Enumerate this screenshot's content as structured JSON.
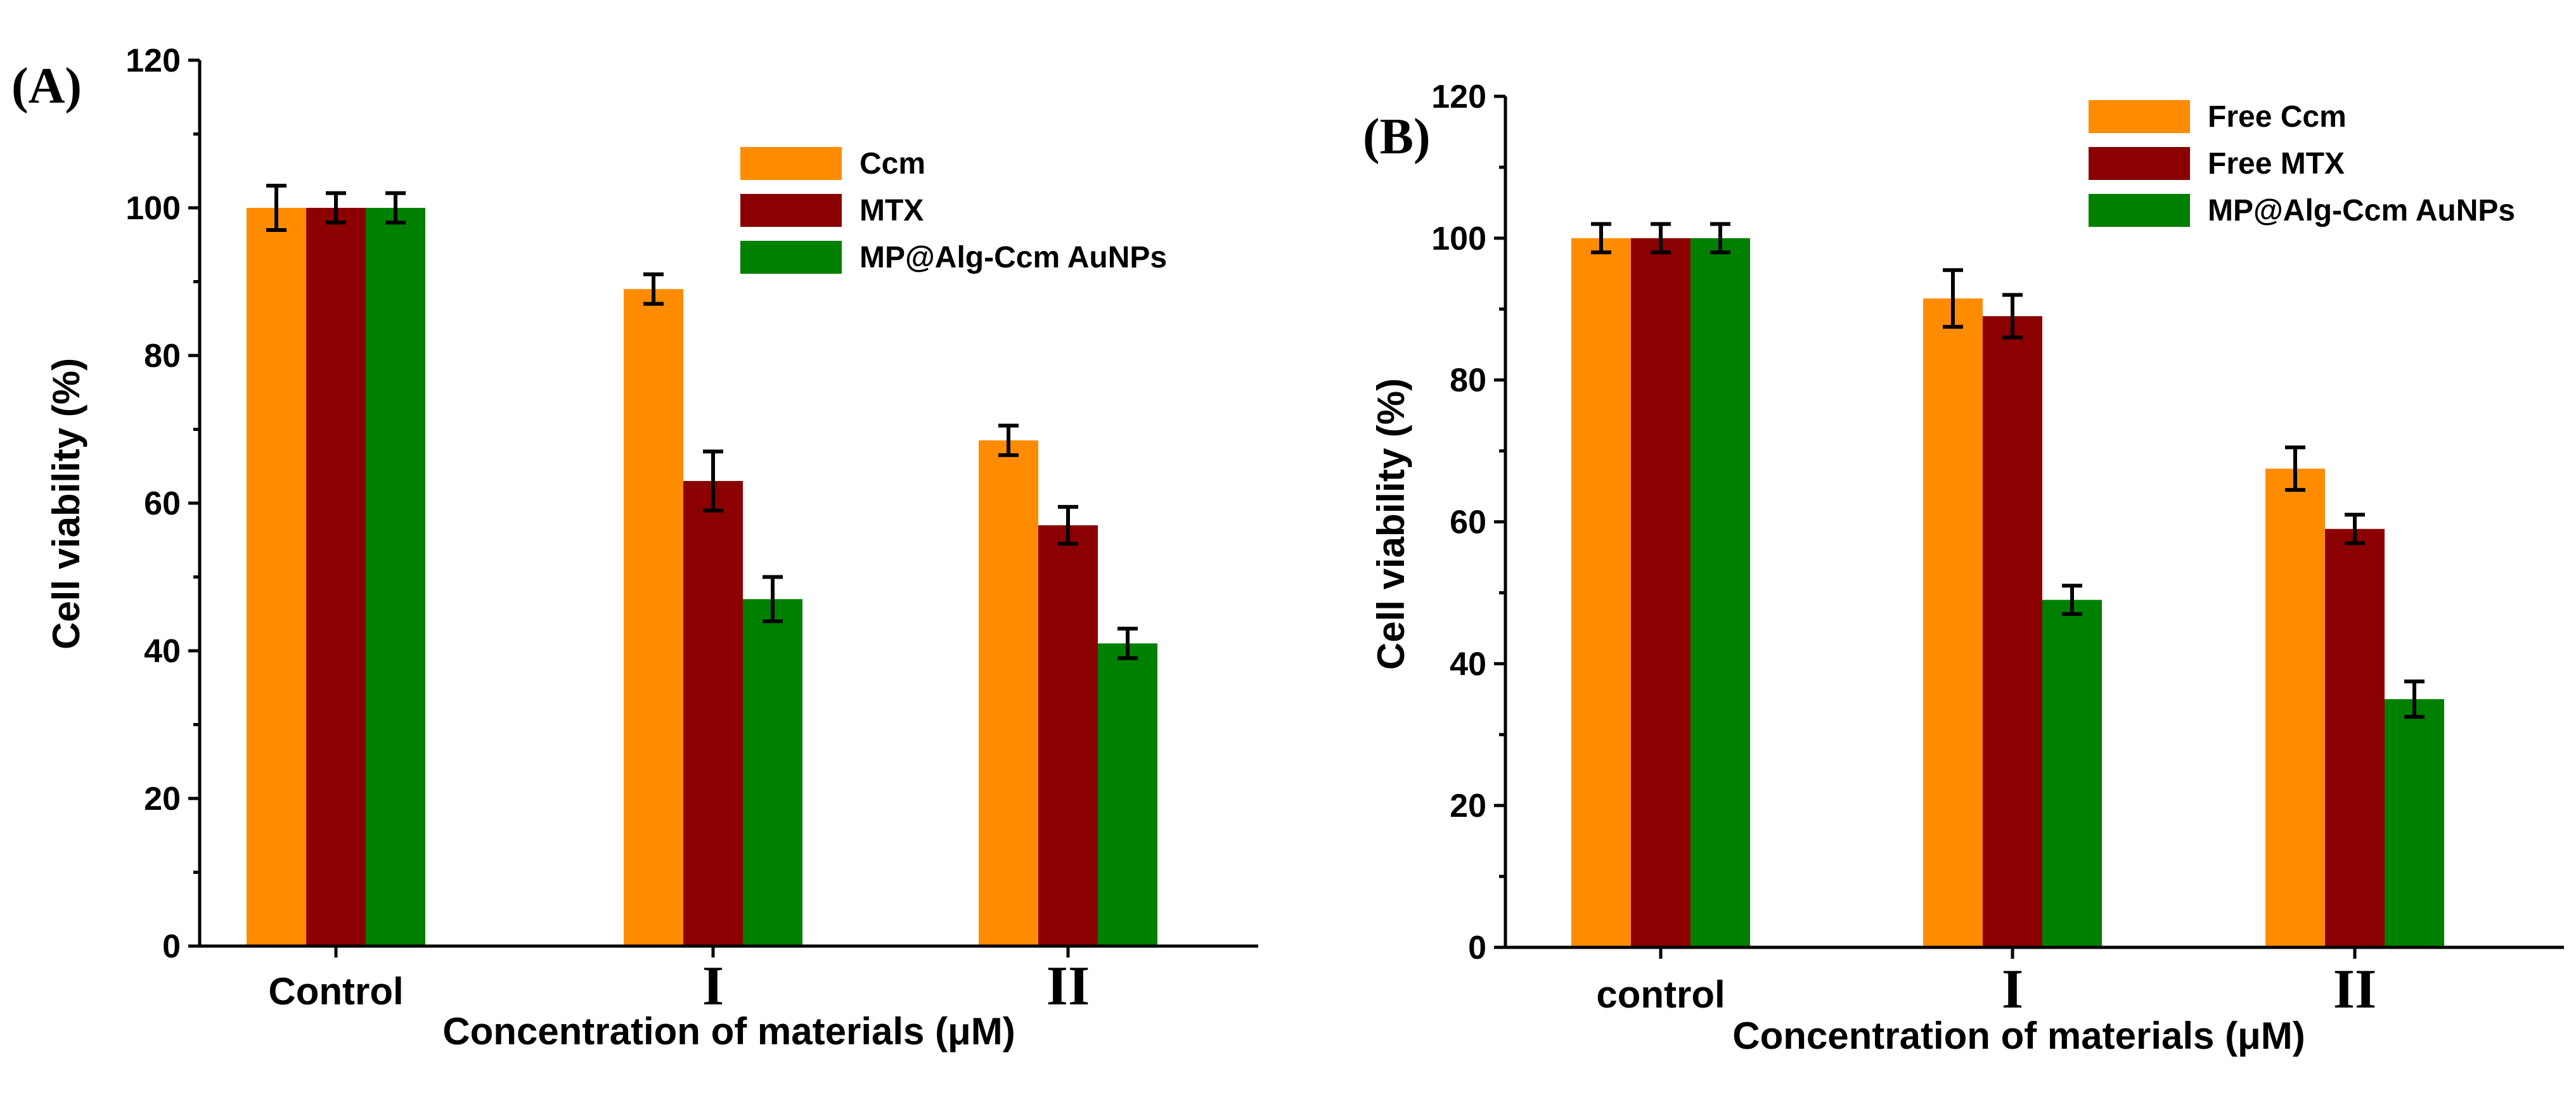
{
  "chart_data": [
    {
      "type": "bar",
      "panel_label": "(A)",
      "categories": [
        "Control",
        "I",
        "II"
      ],
      "series": [
        {
          "name": "Ccm",
          "color": "#FF8C00",
          "values": [
            100,
            89,
            68.5
          ],
          "errors": [
            3,
            2,
            2
          ]
        },
        {
          "name": "MTX",
          "color": "#8B0000",
          "values": [
            100,
            63,
            57
          ],
          "errors": [
            2,
            4,
            2.5
          ]
        },
        {
          "name": "MP@Alg-Ccm AuNPs",
          "color": "#008000",
          "values": [
            100,
            47,
            41
          ],
          "errors": [
            2,
            3,
            2
          ]
        }
      ],
      "xlabel": "Concentration of materials (μM)",
      "ylabel": "Cell viability (%)",
      "ylim": [
        0,
        120
      ],
      "yticks": [
        0,
        20,
        40,
        60,
        80,
        100,
        120
      ],
      "legend_position": "top-right"
    },
    {
      "type": "bar",
      "panel_label": "(B)",
      "categories": [
        "control",
        "I",
        "II"
      ],
      "series": [
        {
          "name": "Free Ccm",
          "color": "#FF8C00",
          "values": [
            100,
            91.5,
            67.5
          ],
          "errors": [
            2,
            4,
            3
          ]
        },
        {
          "name": "Free MTX",
          "color": "#8B0000",
          "values": [
            100,
            89,
            59
          ],
          "errors": [
            2,
            3,
            2
          ]
        },
        {
          "name": "MP@Alg-Ccm AuNPs",
          "color": "#008000",
          "values": [
            100,
            49,
            35
          ],
          "errors": [
            2,
            2,
            2.5
          ]
        }
      ],
      "xlabel": "Concentration of materials (μM)",
      "ylabel": "Cell viability (%)",
      "ylim": [
        0,
        120
      ],
      "yticks": [
        0,
        20,
        40,
        60,
        80,
        100,
        120
      ],
      "legend_position": "top-right"
    }
  ]
}
